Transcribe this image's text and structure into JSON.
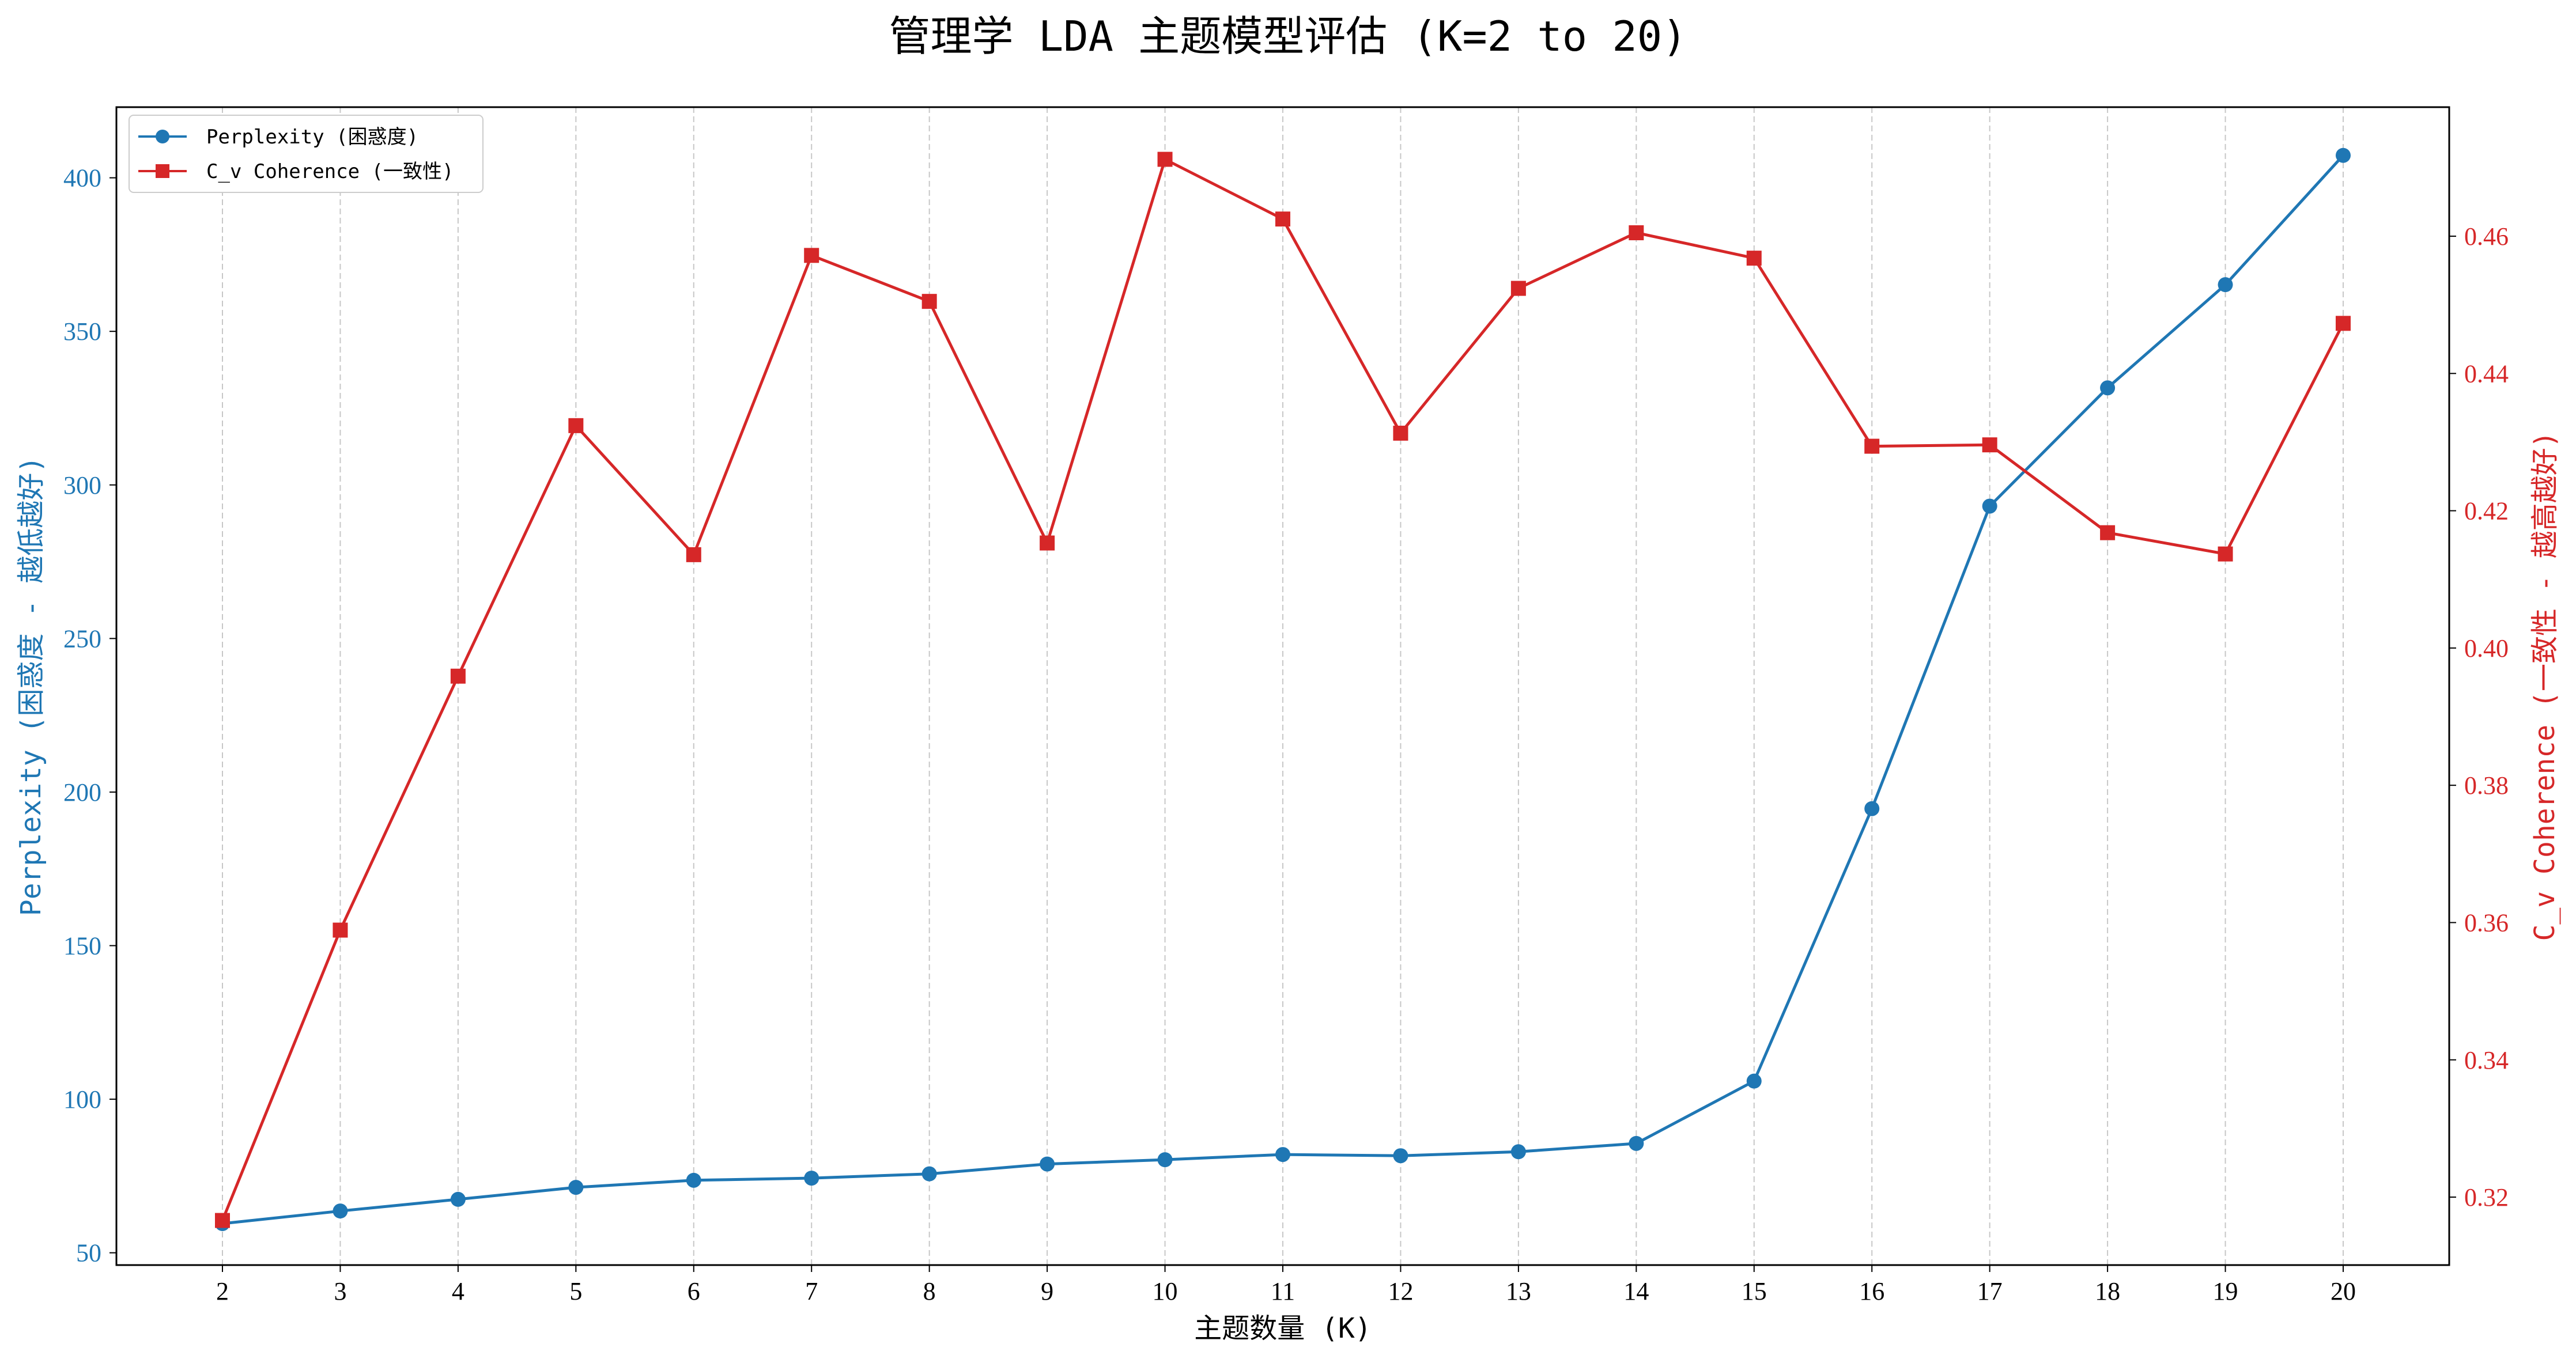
{
  "chart_data": {
    "type": "line",
    "title": "管理学 LDA 主题模型评估 (K=2 to 20)",
    "xlabel": "主题数量 (K)",
    "x": [
      2,
      3,
      4,
      5,
      6,
      7,
      8,
      9,
      10,
      11,
      12,
      13,
      14,
      15,
      16,
      17,
      18,
      19,
      20
    ],
    "xlim": [
      1.1,
      20.9
    ],
    "grid": "vertical dashed",
    "legend_position": "top-left",
    "left_axis": {
      "label": "Perplexity (困惑度 - 越低越好)",
      "color": "#1f77b4",
      "ylim": [
        46,
        423
      ],
      "ticks": [
        50,
        100,
        150,
        200,
        250,
        300,
        350,
        400
      ]
    },
    "right_axis": {
      "label": "C_v Coherence (一致性 - 越高越好)",
      "color": "#d62728",
      "ylim": [
        0.3101,
        0.4788
      ],
      "ticks": [
        0.32,
        0.34,
        0.36,
        0.38,
        0.4,
        0.42,
        0.44,
        0.46
      ]
    },
    "series": [
      {
        "name": "Perplexity (困惑度)",
        "axis": "left",
        "color": "#1f77b4",
        "marker": "circle",
        "values": [
          59.5,
          63.6,
          67.4,
          71.3,
          73.6,
          74.3,
          75.7,
          78.9,
          80.3,
          82.0,
          81.6,
          82.9,
          85.6,
          105.9,
          194.6,
          293.1,
          331.6,
          365.2,
          407.3
        ]
      },
      {
        "name": "C_v Coherence (一致性)",
        "axis": "right",
        "color": "#d62728",
        "marker": "square",
        "values": [
          0.3166,
          0.3589,
          0.3959,
          0.4324,
          0.4136,
          0.4572,
          0.4505,
          0.4153,
          0.4712,
          0.4625,
          0.4313,
          0.4524,
          0.4605,
          0.4568,
          0.4294,
          0.4296,
          0.4168,
          0.4137,
          0.4473
        ]
      }
    ]
  }
}
